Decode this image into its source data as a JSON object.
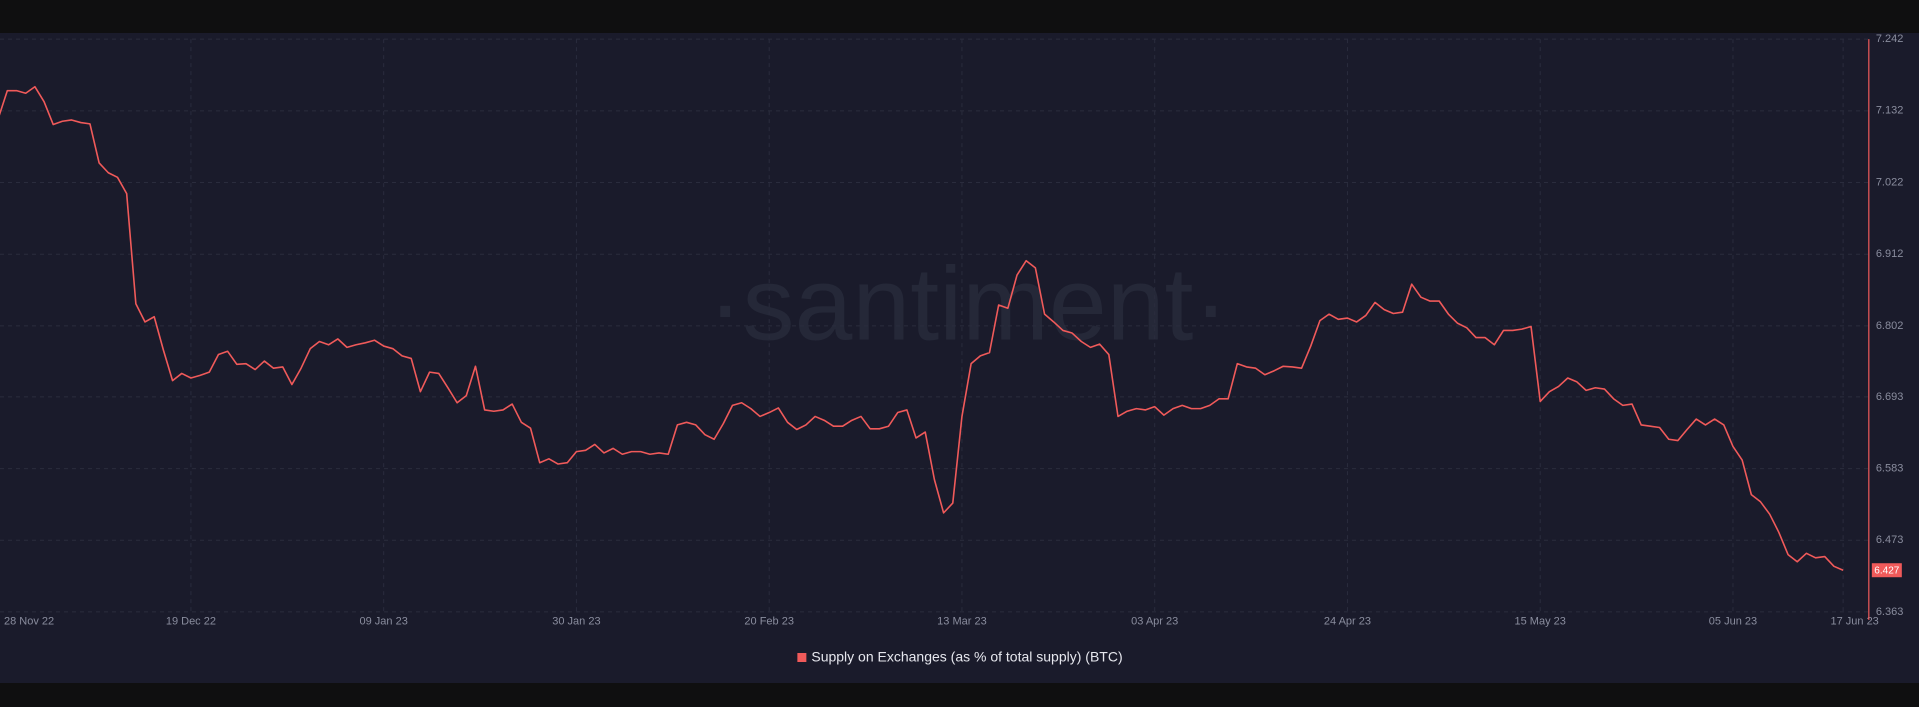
{
  "chart_data": {
    "type": "line",
    "watermark": "·santiment·",
    "categories": [
      "28 Nov 22",
      "29 Nov 22",
      "30 Nov 22",
      "01 Dec 22",
      "02 Dec 22",
      "03 Dec 22",
      "04 Dec 22",
      "05 Dec 22",
      "06 Dec 22",
      "07 Dec 22",
      "08 Dec 22",
      "09 Dec 22",
      "10 Dec 22",
      "11 Dec 22",
      "12 Dec 22",
      "13 Dec 22",
      "14 Dec 22",
      "15 Dec 22",
      "16 Dec 22",
      "17 Dec 22",
      "18 Dec 22",
      "19 Dec 22",
      "20 Dec 22",
      "21 Dec 22",
      "22 Dec 22",
      "23 Dec 22",
      "24 Dec 22",
      "25 Dec 22",
      "26 Dec 22",
      "27 Dec 22",
      "28 Dec 22",
      "29 Dec 22",
      "30 Dec 22",
      "31 Dec 22",
      "01 Jan 23",
      "02 Jan 23",
      "03 Jan 23",
      "04 Jan 23",
      "05 Jan 23",
      "06 Jan 23",
      "07 Jan 23",
      "08 Jan 23",
      "09 Jan 23",
      "10 Jan 23",
      "11 Jan 23",
      "12 Jan 23",
      "13 Jan 23",
      "14 Jan 23",
      "15 Jan 23",
      "16 Jan 23",
      "17 Jan 23",
      "18 Jan 23",
      "19 Jan 23",
      "20 Jan 23",
      "21 Jan 23",
      "22 Jan 23",
      "23 Jan 23",
      "24 Jan 23",
      "25 Jan 23",
      "26 Jan 23",
      "27 Jan 23",
      "28 Jan 23",
      "29 Jan 23",
      "30 Jan 23",
      "31 Jan 23",
      "01 Feb 23",
      "02 Feb 23",
      "03 Feb 23",
      "04 Feb 23",
      "05 Feb 23",
      "06 Feb 23",
      "07 Feb 23",
      "08 Feb 23",
      "09 Feb 23",
      "10 Feb 23",
      "11 Feb 23",
      "12 Feb 23",
      "13 Feb 23",
      "14 Feb 23",
      "15 Feb 23",
      "16 Feb 23",
      "17 Feb 23",
      "18 Feb 23",
      "19 Feb 23",
      "20 Feb 23",
      "21 Feb 23",
      "22 Feb 23",
      "23 Feb 23",
      "24 Feb 23",
      "25 Feb 23",
      "26 Feb 23",
      "27 Feb 23",
      "28 Feb 23",
      "01 Mar 23",
      "02 Mar 23",
      "03 Mar 23",
      "04 Mar 23",
      "05 Mar 23",
      "06 Mar 23",
      "07 Mar 23",
      "08 Mar 23",
      "09 Mar 23",
      "10 Mar 23",
      "11 Mar 23",
      "12 Mar 23",
      "13 Mar 23",
      "14 Mar 23",
      "15 Mar 23",
      "16 Mar 23",
      "17 Mar 23",
      "18 Mar 23",
      "19 Mar 23",
      "20 Mar 23",
      "21 Mar 23",
      "22 Mar 23",
      "23 Mar 23",
      "24 Mar 23",
      "25 Mar 23",
      "26 Mar 23",
      "27 Mar 23",
      "28 Mar 23",
      "29 Mar 23",
      "30 Mar 23",
      "31 Mar 23",
      "01 Apr 23",
      "02 Apr 23",
      "03 Apr 23",
      "04 Apr 23",
      "05 Apr 23",
      "06 Apr 23",
      "07 Apr 23",
      "08 Apr 23",
      "09 Apr 23",
      "10 Apr 23",
      "11 Apr 23",
      "12 Apr 23",
      "13 Apr 23",
      "14 Apr 23",
      "15 Apr 23",
      "16 Apr 23",
      "17 Apr 23",
      "18 Apr 23",
      "19 Apr 23",
      "20 Apr 23",
      "21 Apr 23",
      "22 Apr 23",
      "23 Apr 23",
      "24 Apr 23",
      "25 Apr 23",
      "26 Apr 23",
      "27 Apr 23",
      "28 Apr 23",
      "29 Apr 23",
      "30 Apr 23",
      "01 May 23",
      "02 May 23",
      "03 May 23",
      "04 May 23",
      "05 May 23",
      "06 May 23",
      "07 May 23",
      "08 May 23",
      "09 May 23",
      "10 May 23",
      "11 May 23",
      "12 May 23",
      "13 May 23",
      "14 May 23",
      "15 May 23",
      "16 May 23",
      "17 May 23",
      "18 May 23",
      "19 May 23",
      "20 May 23",
      "21 May 23",
      "22 May 23",
      "23 May 23",
      "24 May 23",
      "25 May 23",
      "26 May 23",
      "27 May 23",
      "28 May 23",
      "29 May 23",
      "30 May 23",
      "31 May 23",
      "01 Jun 23",
      "02 Jun 23",
      "03 Jun 23",
      "04 Jun 23",
      "05 Jun 23",
      "06 Jun 23",
      "07 Jun 23",
      "08 Jun 23",
      "09 Jun 23",
      "10 Jun 23",
      "11 Jun 23",
      "12 Jun 23",
      "13 Jun 23",
      "14 Jun 23",
      "15 Jun 23",
      "16 Jun 23",
      "17 Jun 23"
    ],
    "series": [
      {
        "name": "Supply on Exchanges (as % of total supply) (BTC)",
        "color": "#f05a5a",
        "values": [
          7.12,
          7.163,
          7.163,
          7.159,
          7.169,
          7.146,
          7.111,
          7.116,
          7.118,
          7.114,
          7.112,
          7.052,
          7.037,
          7.03,
          7.005,
          6.836,
          6.808,
          6.816,
          6.765,
          6.718,
          6.729,
          6.722,
          6.726,
          6.731,
          6.758,
          6.763,
          6.743,
          6.744,
          6.735,
          6.748,
          6.737,
          6.739,
          6.712,
          6.737,
          6.767,
          6.778,
          6.773,
          6.782,
          6.769,
          6.773,
          6.776,
          6.78,
          6.771,
          6.767,
          6.756,
          6.752,
          6.701,
          6.731,
          6.729,
          6.707,
          6.684,
          6.695,
          6.74,
          6.673,
          6.671,
          6.673,
          6.682,
          6.654,
          6.645,
          6.592,
          6.598,
          6.59,
          6.592,
          6.609,
          6.611,
          6.62,
          6.607,
          6.614,
          6.605,
          6.609,
          6.609,
          6.605,
          6.607,
          6.605,
          6.65,
          6.654,
          6.65,
          6.635,
          6.628,
          6.652,
          6.68,
          6.684,
          6.675,
          6.663,
          6.669,
          6.676,
          6.654,
          6.643,
          6.65,
          6.663,
          6.657,
          6.648,
          6.648,
          6.657,
          6.663,
          6.644,
          6.644,
          6.648,
          6.669,
          6.673,
          6.63,
          6.639,
          6.566,
          6.515,
          6.53,
          6.663,
          6.744,
          6.756,
          6.761,
          6.834,
          6.829,
          6.88,
          6.902,
          6.891,
          6.82,
          6.808,
          6.795,
          6.791,
          6.778,
          6.769,
          6.774,
          6.758,
          6.663,
          6.671,
          6.675,
          6.673,
          6.678,
          6.665,
          6.675,
          6.68,
          6.675,
          6.675,
          6.68,
          6.69,
          6.69,
          6.744,
          6.739,
          6.737,
          6.727,
          6.733,
          6.74,
          6.739,
          6.737,
          6.771,
          6.81,
          6.82,
          6.812,
          6.814,
          6.808,
          6.818,
          6.838,
          6.827,
          6.821,
          6.823,
          6.866,
          6.846,
          6.84,
          6.84,
          6.82,
          6.806,
          6.799,
          6.784,
          6.784,
          6.773,
          6.795,
          6.795,
          6.797,
          6.801,
          6.686,
          6.701,
          6.709,
          6.722,
          6.716,
          6.703,
          6.707,
          6.705,
          6.69,
          6.68,
          6.682,
          6.65,
          6.648,
          6.646,
          6.628,
          6.626,
          6.643,
          6.659,
          6.65,
          6.659,
          6.65,
          6.617,
          6.596,
          6.543,
          6.532,
          6.513,
          6.485,
          6.451,
          6.44,
          6.453,
          6.446,
          6.448,
          6.433,
          6.427
        ]
      }
    ],
    "ylim": [
      6.363,
      7.242
    ],
    "yticks": [
      7.242,
      7.132,
      7.022,
      6.912,
      6.802,
      6.693,
      6.583,
      6.473,
      6.363
    ],
    "xticks": [
      "28 Nov 22",
      "19 Dec 22",
      "09 Jan 23",
      "30 Jan 23",
      "20 Feb 23",
      "13 Mar 23",
      "03 Apr 23",
      "24 Apr 23",
      "15 May 23",
      "05 Jun 23",
      "17 Jun 23"
    ],
    "grid": true
  }
}
